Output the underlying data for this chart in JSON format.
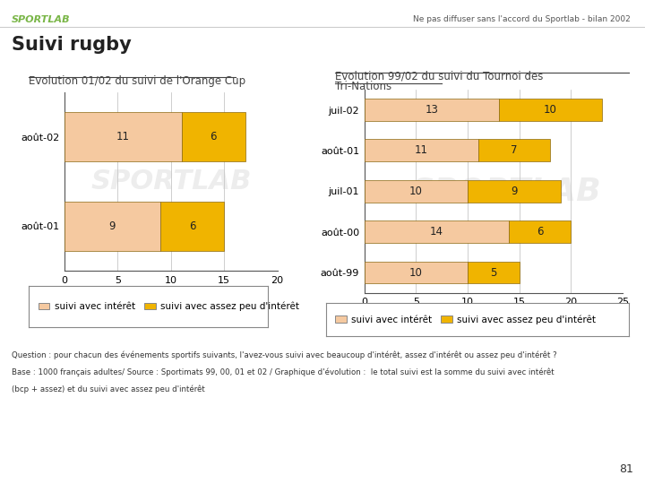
{
  "header_text": "Ne pas diffuser sans l'accord du Sportlab - bilan 2002",
  "sportlab_color": "#7ab648",
  "title": "Suivi rugby",
  "chart1_title": "Evolution 01/02 du suivi de l'Orange Cup",
  "chart1_categories": [
    "août-02",
    "août-01"
  ],
  "chart1_values1": [
    11,
    9
  ],
  "chart1_values2": [
    6,
    6
  ],
  "chart1_xlim": [
    0,
    20
  ],
  "chart1_xticks": [
    0,
    5,
    10,
    15,
    20
  ],
  "chart2_title_line1": "Evolution 99/02 du suivi du Tournoi des",
  "chart2_title_line2": "Tri-Nations",
  "chart2_categories": [
    "juil-02",
    "août-01",
    "juil-01",
    "août-00",
    "août-99"
  ],
  "chart2_values1": [
    13,
    11,
    10,
    14,
    10
  ],
  "chart2_values2": [
    10,
    7,
    9,
    6,
    5
  ],
  "chart2_xlim": [
    0,
    25
  ],
  "chart2_xticks": [
    0,
    5,
    10,
    15,
    20,
    25
  ],
  "color_interest": "#f5c9a0",
  "color_some_interest": "#f0b400",
  "bar_edge_color": "#8B6914",
  "legend_label1": "suivi avec intérêt",
  "legend_label2": "suivi avec assez peu d'intérêt",
  "footer1": "Question : pour chacun des événements sportifs suivants, l'avez-vous suivi avec beaucoup d'intérêt, assez d'intérêt ou assez peu d'intérêt ?",
  "footer2": "Base : 1000 français adultes/ Source : Sportimats 99, 00, 01 et 02 / Graphique d'évolution :  le total suivi est la somme du suivi avec intérêt",
  "footer3": "(bcp + assez) et du suivi avec assez peu d'intérêt",
  "page_num": "81",
  "bg_color": "#ffffff",
  "grid_color": "#bbbbbb"
}
